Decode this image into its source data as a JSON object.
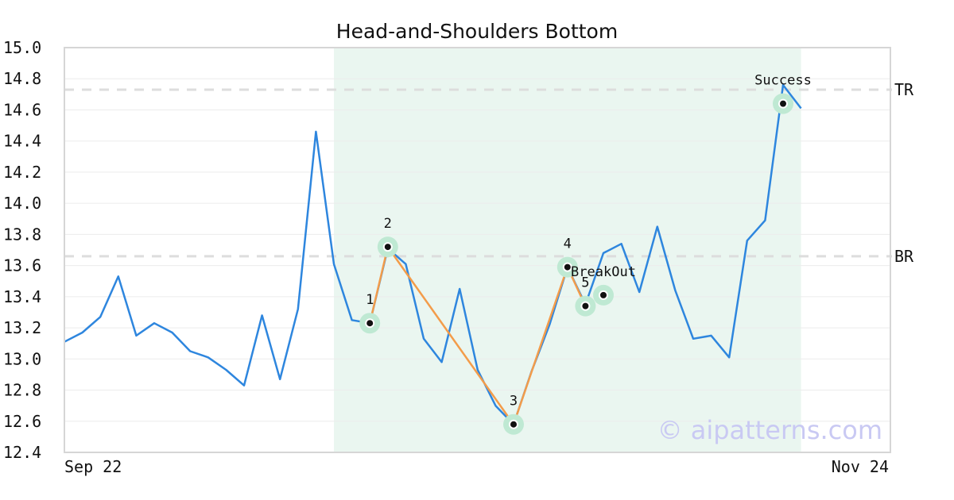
{
  "chart_data": {
    "type": "line",
    "title": "Head-and-Shoulders Bottom",
    "xlabel": "",
    "ylabel": "",
    "ylim": [
      12.4,
      15.0
    ],
    "y_ticks": [
      "15.0",
      "14.8",
      "14.6",
      "14.4",
      "14.2",
      "14.0",
      "13.8",
      "13.6",
      "13.4",
      "13.2",
      "13.0",
      "12.8",
      "12.6",
      "12.4"
    ],
    "x_tick_labels": [
      "Sep 22",
      "Nov 24"
    ],
    "grid": true,
    "colors": {
      "price_line": "#2e86de",
      "pattern_line": "#f39c4a",
      "highlight": "#eaf6f0",
      "point_halo": "#bfe9d3",
      "level_line": "#dddddd"
    },
    "series": [
      {
        "values": [
          13.11,
          13.17,
          13.27,
          13.53,
          13.15,
          13.23,
          13.17,
          13.05,
          13.01,
          12.93,
          12.83,
          13.28,
          12.87,
          13.32,
          14.46,
          13.61,
          13.25,
          13.23,
          13.71,
          13.61,
          13.13,
          12.98,
          13.45,
          12.93,
          12.7,
          12.58,
          12.92,
          13.22,
          13.59,
          13.35,
          13.68,
          13.74,
          13.43,
          13.85,
          13.44,
          13.13,
          13.15,
          13.01,
          13.76,
          13.89,
          14.76,
          14.61
        ]
      }
    ],
    "highlight_range": [
      15,
      41
    ],
    "levels": [
      {
        "label": "TR",
        "value": 14.73
      },
      {
        "label": "BR",
        "value": 13.66
      }
    ],
    "pattern_points": [
      {
        "label": "1",
        "index": 17,
        "value": 13.23
      },
      {
        "label": "2",
        "index": 18,
        "value": 13.72
      },
      {
        "label": "3",
        "index": 25,
        "value": 12.58
      },
      {
        "label": "4",
        "index": 28,
        "value": 13.59
      },
      {
        "label": "5",
        "index": 29,
        "value": 13.34
      }
    ],
    "annotations": [
      {
        "label": "BreakOut",
        "index": 30,
        "value": 13.41
      },
      {
        "label": "Success",
        "index": 40,
        "value": 14.64
      }
    ],
    "watermark": "© aipatterns.com"
  }
}
